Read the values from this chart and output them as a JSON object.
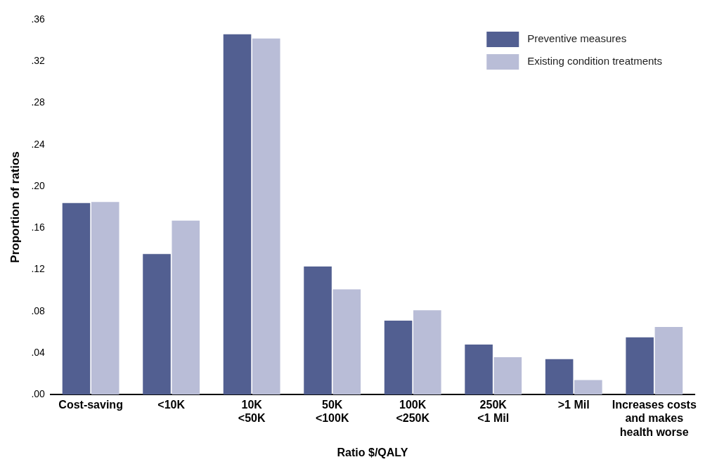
{
  "chart_data": {
    "type": "bar",
    "xlabel": "Ratio $/QALY",
    "ylabel": "Proportion of ratios",
    "categories": [
      "Cost-saving",
      "<10K",
      "10K\n<50K",
      "50K\n<100K",
      "100K\n<250K",
      "250K\n<1 Mil",
      ">1 Mil",
      "Increases costs\nand makes\nhealth worse"
    ],
    "series": [
      {
        "name": "Preventive measures",
        "color": "#525f91",
        "values": [
          0.184,
          0.135,
          0.346,
          0.123,
          0.071,
          0.048,
          0.034,
          0.055
        ]
      },
      {
        "name": "Existing condition treatments",
        "color": "#b9bdd7",
        "values": [
          0.185,
          0.167,
          0.342,
          0.101,
          0.081,
          0.036,
          0.014,
          0.065
        ]
      }
    ],
    "ylim": [
      0,
      0.36
    ],
    "yticks": [
      {
        "value": 0,
        "label": ".00"
      },
      {
        "value": 0.04,
        "label": ".04"
      },
      {
        "value": 0.08,
        "label": ".08"
      },
      {
        "value": 0.12,
        "label": ".12"
      },
      {
        "value": 0.16,
        "label": ".16"
      },
      {
        "value": 0.2,
        "label": ".20"
      },
      {
        "value": 0.24,
        "label": ".24"
      },
      {
        "value": 0.28,
        "label": ".28"
      },
      {
        "value": 0.32,
        "label": ".32"
      },
      {
        "value": 0.36,
        "label": ".36"
      }
    ],
    "grid": false,
    "legend": "top right"
  }
}
